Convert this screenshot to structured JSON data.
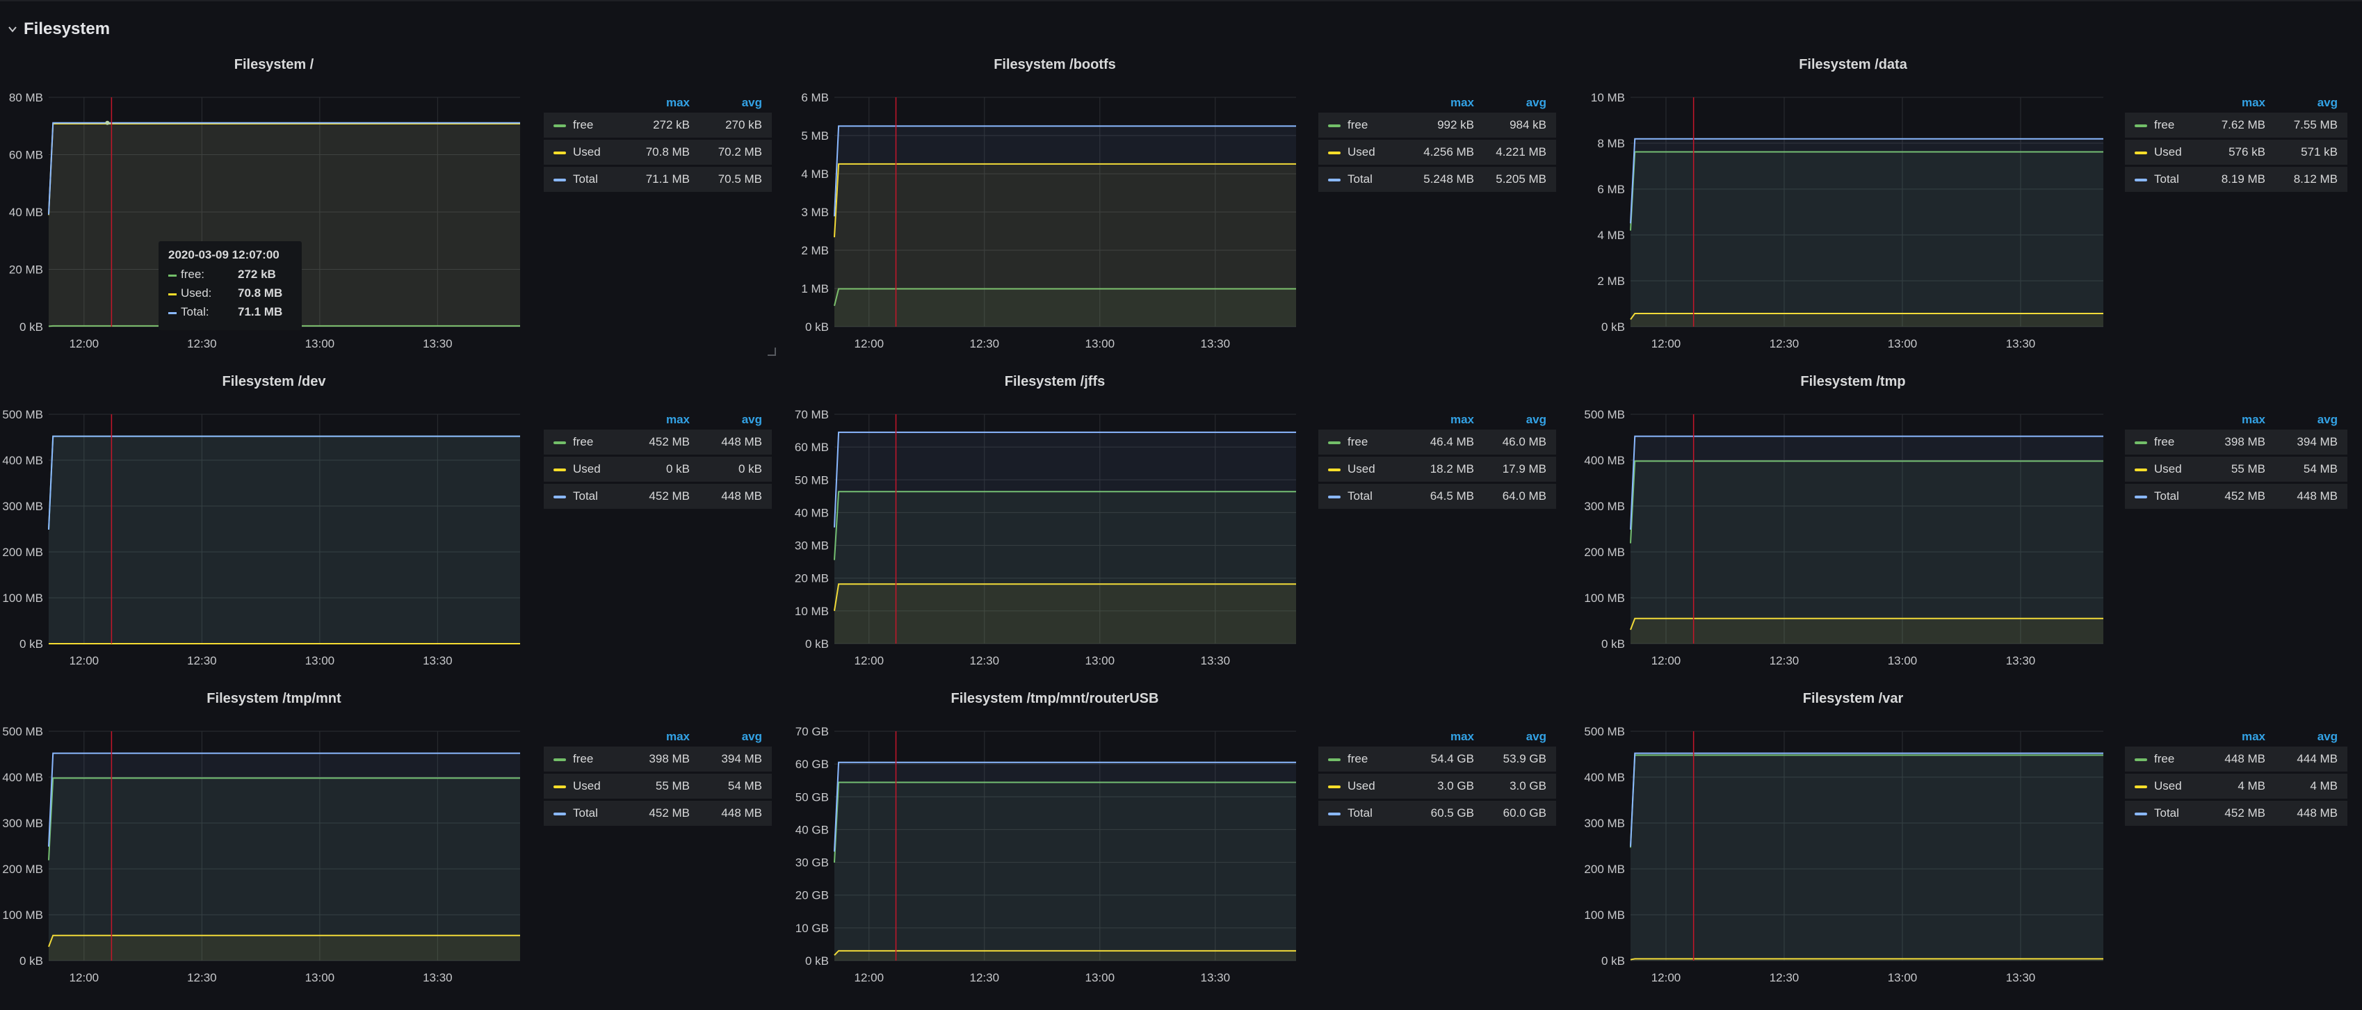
{
  "row": {
    "title": "Filesystem"
  },
  "colors": {
    "free": "#73bf69",
    "used": "#fade2a",
    "total": "#8ab8ff",
    "cursor": "#c4162a",
    "grid": "#2c2e33",
    "axis_text": "#c7c8cb",
    "legend_head": "#33a2e5"
  },
  "legend_headers": {
    "max": "max",
    "avg": "avg"
  },
  "x_ticks": [
    "12:00",
    "12:30",
    "13:00",
    "13:30"
  ],
  "tooltip": {
    "time": "2020-03-09 12:07:00",
    "rows": [
      {
        "name": "free:",
        "value": "272 kB",
        "color": "#73bf69"
      },
      {
        "name": "Used:",
        "value": "70.8 MB",
        "color": "#fade2a"
      },
      {
        "name": "Total:",
        "value": "71.1 MB",
        "color": "#8ab8ff"
      }
    ]
  },
  "panels": [
    {
      "title": "Filesystem /",
      "y_ticks": [
        "80 MB",
        "60 MB",
        "40 MB",
        "20 MB",
        "0 kB"
      ],
      "legend": [
        {
          "name": "free",
          "max": "272 kB",
          "avg": "270 kB"
        },
        {
          "name": "Used",
          "max": "70.8 MB",
          "avg": "70.2 MB"
        },
        {
          "name": "Total",
          "max": "71.1 MB",
          "avg": "70.5 MB"
        }
      ]
    },
    {
      "title": "Filesystem /bootfs",
      "y_ticks": [
        "6 MB",
        "5 MB",
        "4 MB",
        "3 MB",
        "2 MB",
        "1 MB",
        "0 kB"
      ],
      "legend": [
        {
          "name": "free",
          "max": "992 kB",
          "avg": "984 kB"
        },
        {
          "name": "Used",
          "max": "4.256 MB",
          "avg": "4.221 MB"
        },
        {
          "name": "Total",
          "max": "5.248 MB",
          "avg": "5.205 MB"
        }
      ]
    },
    {
      "title": "Filesystem /data",
      "y_ticks": [
        "10 MB",
        "8 MB",
        "6 MB",
        "4 MB",
        "2 MB",
        "0 kB"
      ],
      "legend": [
        {
          "name": "free",
          "max": "7.62 MB",
          "avg": "7.55 MB"
        },
        {
          "name": "Used",
          "max": "576 kB",
          "avg": "571 kB"
        },
        {
          "name": "Total",
          "max": "8.19 MB",
          "avg": "8.12 MB"
        }
      ]
    },
    {
      "title": "Filesystem /dev",
      "y_ticks": [
        "500 MB",
        "400 MB",
        "300 MB",
        "200 MB",
        "100 MB",
        "0 kB"
      ],
      "legend": [
        {
          "name": "free",
          "max": "452 MB",
          "avg": "448 MB"
        },
        {
          "name": "Used",
          "max": "0 kB",
          "avg": "0 kB"
        },
        {
          "name": "Total",
          "max": "452 MB",
          "avg": "448 MB"
        }
      ]
    },
    {
      "title": "Filesystem /jffs",
      "y_ticks": [
        "70 MB",
        "60 MB",
        "50 MB",
        "40 MB",
        "30 MB",
        "20 MB",
        "10 MB",
        "0 kB"
      ],
      "legend": [
        {
          "name": "free",
          "max": "46.4 MB",
          "avg": "46.0 MB"
        },
        {
          "name": "Used",
          "max": "18.2 MB",
          "avg": "17.9 MB"
        },
        {
          "name": "Total",
          "max": "64.5 MB",
          "avg": "64.0 MB"
        }
      ]
    },
    {
      "title": "Filesystem /tmp",
      "y_ticks": [
        "500 MB",
        "400 MB",
        "300 MB",
        "200 MB",
        "100 MB",
        "0 kB"
      ],
      "legend": [
        {
          "name": "free",
          "max": "398 MB",
          "avg": "394 MB"
        },
        {
          "name": "Used",
          "max": "55 MB",
          "avg": "54 MB"
        },
        {
          "name": "Total",
          "max": "452 MB",
          "avg": "448 MB"
        }
      ]
    },
    {
      "title": "Filesystem /tmp/mnt",
      "y_ticks": [
        "500 MB",
        "400 MB",
        "300 MB",
        "200 MB",
        "100 MB",
        "0 kB"
      ],
      "legend": [
        {
          "name": "free",
          "max": "398 MB",
          "avg": "394 MB"
        },
        {
          "name": "Used",
          "max": "55 MB",
          "avg": "54 MB"
        },
        {
          "name": "Total",
          "max": "452 MB",
          "avg": "448 MB"
        }
      ]
    },
    {
      "title": "Filesystem /tmp/mnt/routerUSB",
      "y_ticks": [
        "70 GB",
        "60 GB",
        "50 GB",
        "40 GB",
        "30 GB",
        "20 GB",
        "10 GB",
        "0 kB"
      ],
      "legend": [
        {
          "name": "free",
          "max": "54.4 GB",
          "avg": "53.9 GB"
        },
        {
          "name": "Used",
          "max": "3.0 GB",
          "avg": "3.0 GB"
        },
        {
          "name": "Total",
          "max": "60.5 GB",
          "avg": "60.0 GB"
        }
      ]
    },
    {
      "title": "Filesystem /var",
      "y_ticks": [
        "500 MB",
        "400 MB",
        "300 MB",
        "200 MB",
        "100 MB",
        "0 kB"
      ],
      "legend": [
        {
          "name": "free",
          "max": "448 MB",
          "avg": "444 MB"
        },
        {
          "name": "Used",
          "max": "4 MB",
          "avg": "4 MB"
        },
        {
          "name": "Total",
          "max": "452 MB",
          "avg": "448 MB"
        }
      ]
    }
  ],
  "chart_data": [
    {
      "type": "line",
      "title": "Filesystem /",
      "x": [
        "11:51",
        "13:51"
      ],
      "ylim": [
        0,
        80
      ],
      "y_unit": "MB",
      "x_ticks": [
        "12:00",
        "12:30",
        "13:00",
        "13:30"
      ],
      "series": [
        {
          "name": "free",
          "values": [
            0.27,
            0.27
          ]
        },
        {
          "name": "Used",
          "values": [
            70.8,
            70.8
          ]
        },
        {
          "name": "Total",
          "values": [
            71.1,
            71.1
          ]
        }
      ]
    },
    {
      "type": "line",
      "title": "Filesystem /bootfs",
      "x": [
        "11:51",
        "13:51"
      ],
      "ylim": [
        0,
        6
      ],
      "y_unit": "MB",
      "x_ticks": [
        "12:00",
        "12:30",
        "13:00",
        "13:30"
      ],
      "series": [
        {
          "name": "free",
          "values": [
            0.992,
            0.992
          ]
        },
        {
          "name": "Used",
          "values": [
            4.256,
            4.256
          ]
        },
        {
          "name": "Total",
          "values": [
            5.248,
            5.248
          ]
        }
      ]
    },
    {
      "type": "line",
      "title": "Filesystem /data",
      "x": [
        "11:51",
        "13:51"
      ],
      "ylim": [
        0,
        10
      ],
      "y_unit": "MB",
      "x_ticks": [
        "12:00",
        "12:30",
        "13:00",
        "13:30"
      ],
      "series": [
        {
          "name": "free",
          "values": [
            7.62,
            7.62
          ]
        },
        {
          "name": "Used",
          "values": [
            0.576,
            0.576
          ]
        },
        {
          "name": "Total",
          "values": [
            8.19,
            8.19
          ]
        }
      ]
    },
    {
      "type": "line",
      "title": "Filesystem /dev",
      "x": [
        "11:51",
        "13:51"
      ],
      "ylim": [
        0,
        500
      ],
      "y_unit": "MB",
      "x_ticks": [
        "12:00",
        "12:30",
        "13:00",
        "13:30"
      ],
      "series": [
        {
          "name": "free",
          "values": [
            452,
            452
          ]
        },
        {
          "name": "Used",
          "values": [
            0,
            0
          ]
        },
        {
          "name": "Total",
          "values": [
            452,
            452
          ]
        }
      ]
    },
    {
      "type": "line",
      "title": "Filesystem /jffs",
      "x": [
        "11:51",
        "13:51"
      ],
      "ylim": [
        0,
        70
      ],
      "y_unit": "MB",
      "x_ticks": [
        "12:00",
        "12:30",
        "13:00",
        "13:30"
      ],
      "series": [
        {
          "name": "free",
          "values": [
            46.4,
            46.4
          ]
        },
        {
          "name": "Used",
          "values": [
            18.2,
            18.2
          ]
        },
        {
          "name": "Total",
          "values": [
            64.5,
            64.5
          ]
        }
      ]
    },
    {
      "type": "line",
      "title": "Filesystem /tmp",
      "x": [
        "11:51",
        "13:51"
      ],
      "ylim": [
        0,
        500
      ],
      "y_unit": "MB",
      "x_ticks": [
        "12:00",
        "12:30",
        "13:00",
        "13:30"
      ],
      "series": [
        {
          "name": "free",
          "values": [
            398,
            398
          ]
        },
        {
          "name": "Used",
          "values": [
            55,
            55
          ]
        },
        {
          "name": "Total",
          "values": [
            452,
            452
          ]
        }
      ]
    },
    {
      "type": "line",
      "title": "Filesystem /tmp/mnt",
      "x": [
        "11:51",
        "13:51"
      ],
      "ylim": [
        0,
        500
      ],
      "y_unit": "MB",
      "x_ticks": [
        "12:00",
        "12:30",
        "13:00",
        "13:30"
      ],
      "series": [
        {
          "name": "free",
          "values": [
            398,
            398
          ]
        },
        {
          "name": "Used",
          "values": [
            55,
            55
          ]
        },
        {
          "name": "Total",
          "values": [
            452,
            452
          ]
        }
      ]
    },
    {
      "type": "line",
      "title": "Filesystem /tmp/mnt/routerUSB",
      "x": [
        "11:51",
        "13:51"
      ],
      "ylim": [
        0,
        70
      ],
      "y_unit": "GB",
      "x_ticks": [
        "12:00",
        "12:30",
        "13:00",
        "13:30"
      ],
      "series": [
        {
          "name": "free",
          "values": [
            54.4,
            54.4
          ]
        },
        {
          "name": "Used",
          "values": [
            3.0,
            3.0
          ]
        },
        {
          "name": "Total",
          "values": [
            60.5,
            60.5
          ]
        }
      ]
    },
    {
      "type": "line",
      "title": "Filesystem /var",
      "x": [
        "11:51",
        "13:51"
      ],
      "ylim": [
        0,
        500
      ],
      "y_unit": "MB",
      "x_ticks": [
        "12:00",
        "12:30",
        "13:00",
        "13:30"
      ],
      "series": [
        {
          "name": "free",
          "values": [
            448,
            448
          ]
        },
        {
          "name": "Used",
          "values": [
            4,
            4
          ]
        },
        {
          "name": "Total",
          "values": [
            452,
            452
          ]
        }
      ]
    }
  ]
}
